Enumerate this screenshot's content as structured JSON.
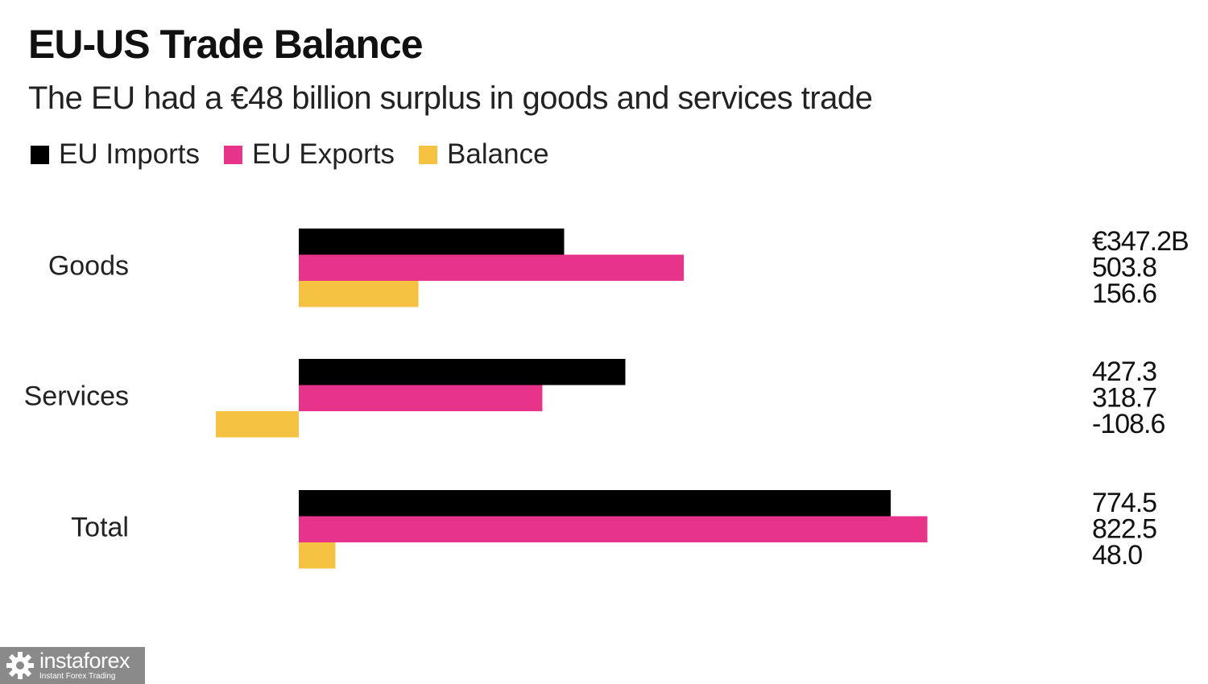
{
  "chart_data": {
    "type": "bar",
    "orientation": "horizontal",
    "title": "EU-US Trade Balance",
    "subtitle": "The EU had a €48 billion surplus in goods and services trade",
    "categories": [
      "Goods",
      "Services",
      "Total"
    ],
    "series": [
      {
        "name": "EU Imports",
        "color": "#000000",
        "values": [
          347.2,
          427.3,
          774.5
        ],
        "labels": [
          "€347.2B",
          "427.3",
          "774.5"
        ]
      },
      {
        "name": "EU Exports",
        "color": "#e8338a",
        "values": [
          503.8,
          318.7,
          822.5
        ],
        "labels": [
          "503.8",
          "318.7",
          "822.5"
        ]
      },
      {
        "name": "Balance",
        "color": "#f5c242",
        "values": [
          156.6,
          -108.6,
          48.0
        ],
        "labels": [
          "156.6",
          "-108.6",
          "48.0"
        ]
      }
    ],
    "legend": "top-left",
    "grid": false
  },
  "watermark": {
    "brand": "instaforex",
    "tagline": "Instant Forex Trading",
    "icon": "gear-icon"
  }
}
